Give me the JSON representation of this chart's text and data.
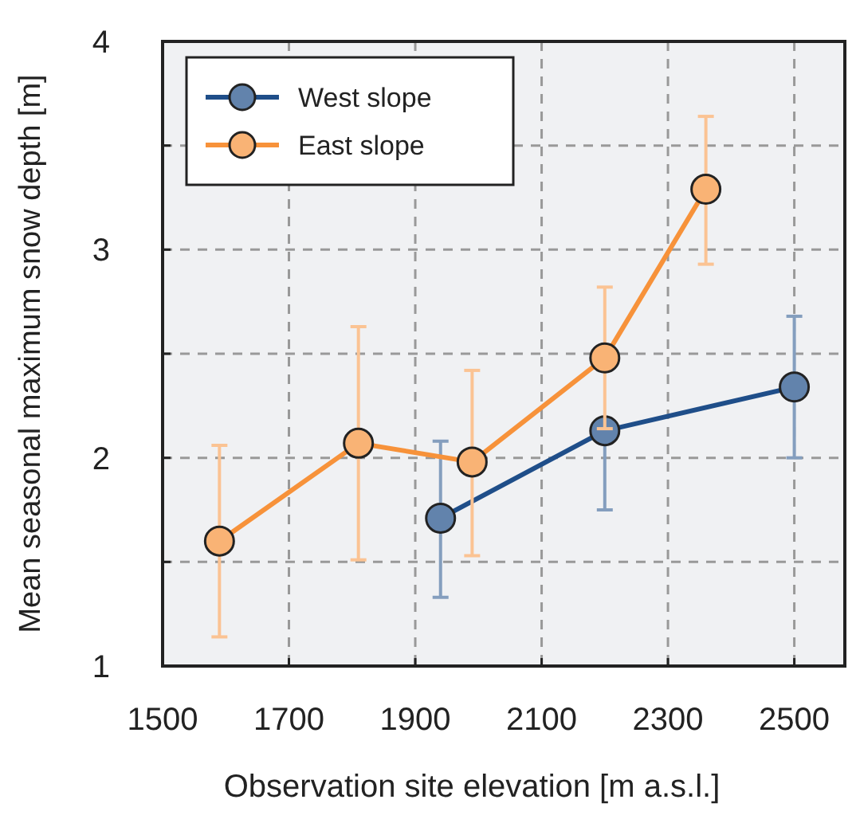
{
  "chart_data": {
    "type": "line",
    "xlabel": "Observation site elevation [m a.s.l.]",
    "ylabel": "Mean seasonal maximum snow depth [m]",
    "xlim": [
      1500,
      2580
    ],
    "xticks": [
      1500,
      1700,
      1900,
      2100,
      2300,
      2500
    ],
    "ylim": [
      1,
      4
    ],
    "yticks": [
      1,
      {
        "value": 1.5,
        "label": null
      },
      2,
      {
        "value": 2.5,
        "label": null
      },
      3,
      {
        "value": 3.5,
        "label": null
      },
      4
    ],
    "grid": true,
    "legend": "top left",
    "marker": "circle",
    "line_style": "solid",
    "series": [
      {
        "name": "West slope",
        "color": "#1f4e89",
        "x": [
          1940,
          2200,
          2500
        ],
        "values": [
          1.71,
          2.13,
          2.34
        ],
        "errors": [
          [
            1.33,
            2.08
          ],
          [
            1.75,
            2.13
          ],
          [
            2.0,
            2.68
          ]
        ]
      },
      {
        "name": "East slope",
        "color": "#f7923a",
        "x": [
          1590,
          1810,
          1990,
          2200,
          2360
        ],
        "values": [
          1.6,
          2.07,
          1.98,
          2.48,
          3.29
        ],
        "errors": [
          [
            1.14,
            2.06
          ],
          [
            1.51,
            2.63
          ],
          [
            1.53,
            2.42
          ],
          [
            2.14,
            2.82
          ],
          [
            2.93,
            3.64
          ]
        ]
      }
    ]
  }
}
